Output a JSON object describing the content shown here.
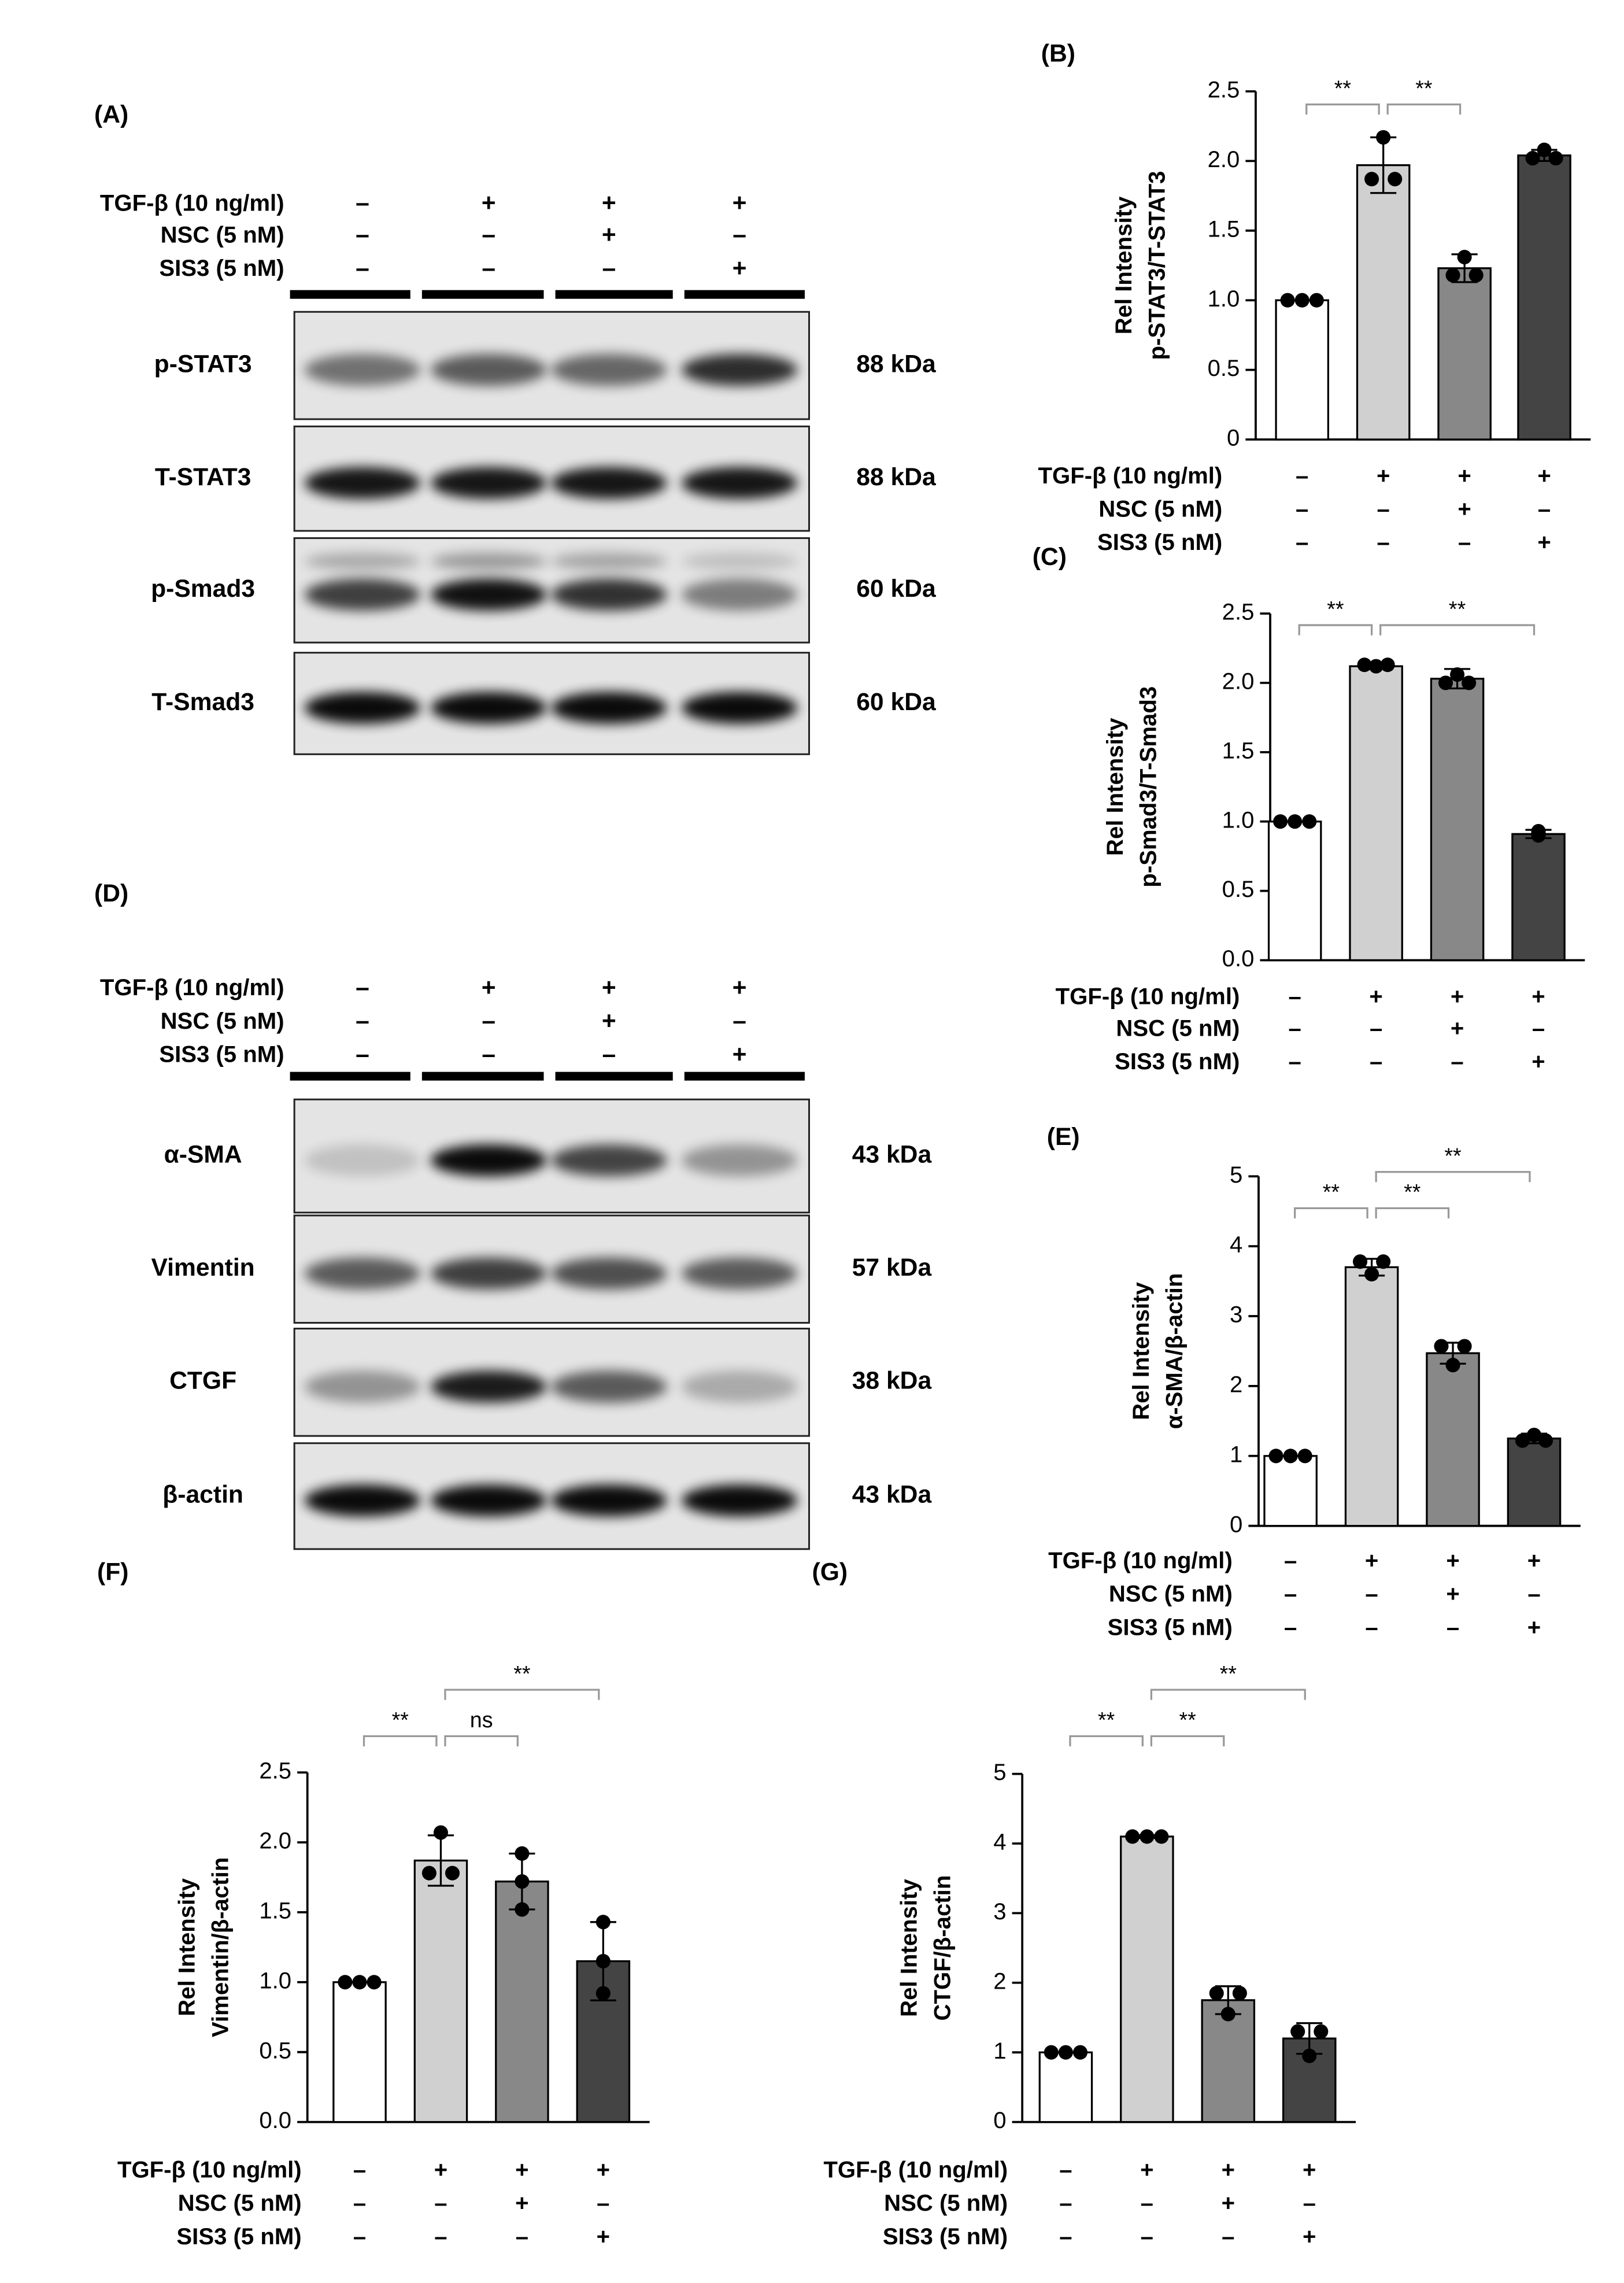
{
  "blots": [
    {
      "panel": "(A)",
      "treatments": [
        {
          "label": "TGF-β (10 ng/ml)",
          "signs": [
            "–",
            "+",
            "+",
            "+"
          ]
        },
        {
          "label": "NSC (5 nM)",
          "signs": [
            "–",
            "–",
            "+",
            "–"
          ]
        },
        {
          "label": "SIS3 (5 nM)",
          "signs": [
            "–",
            "–",
            "–",
            "+"
          ]
        }
      ],
      "bands": [
        {
          "name": "p-STAT3",
          "size": "88 kDa"
        },
        {
          "name": "T-STAT3",
          "size": "88 kDa"
        },
        {
          "name": "p-Smad3",
          "size": "60 kDa"
        },
        {
          "name": "T-Smad3",
          "size": "60 kDa"
        }
      ]
    },
    {
      "panel": "(D)",
      "treatments": [
        {
          "label": "TGF-β (10 ng/ml)",
          "signs": [
            "–",
            "+",
            "+",
            "+"
          ]
        },
        {
          "label": "NSC (5 nM)",
          "signs": [
            "–",
            "–",
            "+",
            "–"
          ]
        },
        {
          "label": "SIS3 (5 nM)",
          "signs": [
            "–",
            "–",
            "–",
            "+"
          ]
        }
      ],
      "bands": [
        {
          "name": "α-SMA",
          "size": "43 kDa"
        },
        {
          "name": "Vimentin",
          "size": "57 kDa"
        },
        {
          "name": "CTGF",
          "size": "38 kDa"
        },
        {
          "name": "β-actin",
          "size": "43 kDa"
        }
      ]
    }
  ],
  "chart_data": [
    {
      "type": "bar",
      "panel": "(B)",
      "ylabel": [
        "Rel Intensity",
        "p-STAT3/T-STAT3"
      ],
      "conditions": [
        {
          "label": "TGF-β (10 ng/ml)",
          "signs": [
            "–",
            "+",
            "+",
            "+"
          ]
        },
        {
          "label": "NSC (5 nM)",
          "signs": [
            "–",
            "–",
            "+",
            "–"
          ]
        },
        {
          "label": "SIS3 (5 nM)",
          "signs": [
            "–",
            "–",
            "–",
            "+"
          ]
        }
      ],
      "values": [
        1.0,
        1.97,
        1.23,
        2.04
      ],
      "errors": [
        0,
        0.2,
        0.1,
        0.04
      ],
      "points": [
        [
          1.0,
          1.0,
          1.0
        ],
        [
          2.17,
          1.87,
          1.87
        ],
        [
          1.31,
          1.18,
          1.18
        ],
        [
          2.08,
          2.02,
          2.02
        ]
      ],
      "colors": [
        "#ffffff",
        "#d0d0d0",
        "#888888",
        "#444444"
      ],
      "ylim": [
        0,
        2.5
      ],
      "yticks": [
        0,
        {
          "value": 0.5,
          "label": "0.5"
        },
        {
          "value": 1,
          "label": "1.0"
        },
        {
          "value": 1.5,
          "label": "1.5"
        },
        {
          "value": 2,
          "label": "2.0"
        },
        {
          "value": 2.5,
          "label": "2.5"
        }
      ],
      "comparisons": [
        {
          "label": "**",
          "between": [
            0,
            1
          ]
        },
        {
          "label": "**",
          "between": [
            1,
            2
          ]
        }
      ]
    },
    {
      "type": "bar",
      "panel": "(C)",
      "ylabel": [
        "Rel Intensity",
        "p-Smad3/T-Smad3"
      ],
      "conditions": [
        {
          "label": "TGF-β (10 ng/ml)",
          "signs": [
            "–",
            "+",
            "+",
            "+"
          ]
        },
        {
          "label": "NSC (5 nM)",
          "signs": [
            "–",
            "–",
            "+",
            "–"
          ]
        },
        {
          "label": "SIS3 (5 nM)",
          "signs": [
            "–",
            "–",
            "–",
            "+"
          ]
        }
      ],
      "values": [
        1.0,
        2.12,
        2.03,
        0.91
      ],
      "errors": [
        0,
        0.02,
        0.07,
        0.03
      ],
      "points": [
        [
          1.0,
          1.0,
          1.0
        ],
        [
          2.13,
          2.12,
          2.13
        ],
        [
          2.06,
          2.0,
          2.0
        ],
        [
          0.93,
          0.9,
          0.92
        ]
      ],
      "colors": [
        "#ffffff",
        "#d0d0d0",
        "#888888",
        "#444444"
      ],
      "ylim": [
        0,
        2.5
      ],
      "yticks": [
        {
          "value": 0,
          "label": "0.0"
        },
        {
          "value": 0.5,
          "label": "0.5"
        },
        {
          "value": 1,
          "label": "1.0"
        },
        {
          "value": 1.5,
          "label": "1.5"
        },
        {
          "value": 2,
          "label": "2.0"
        },
        {
          "value": 2.5,
          "label": "2.5"
        }
      ],
      "comparisons": [
        {
          "label": "**",
          "between": [
            0,
            1
          ]
        },
        {
          "label": "**",
          "between": [
            1,
            3
          ]
        }
      ]
    },
    {
      "type": "bar",
      "panel": "(E)",
      "ylabel": [
        "Rel Intensity",
        "α-SMA/β-actin"
      ],
      "conditions": [
        {
          "label": "TGF-β (10 ng/ml)",
          "signs": [
            "–",
            "+",
            "+",
            "+"
          ]
        },
        {
          "label": "NSC (5 nM)",
          "signs": [
            "–",
            "–",
            "+",
            "–"
          ]
        },
        {
          "label": "SIS3 (5 nM)",
          "signs": [
            "–",
            "–",
            "–",
            "+"
          ]
        }
      ],
      "values": [
        1.0,
        3.7,
        2.47,
        1.25
      ],
      "errors": [
        0,
        0.12,
        0.15,
        0.07
      ],
      "points": [
        [
          1.0,
          1.0,
          1.0
        ],
        [
          3.78,
          3.78,
          3.6
        ],
        [
          2.57,
          2.57,
          2.3
        ],
        [
          1.3,
          1.22,
          1.22
        ]
      ],
      "colors": [
        "#ffffff",
        "#d0d0d0",
        "#888888",
        "#444444"
      ],
      "ylim": [
        0,
        5
      ],
      "yticks": [
        0,
        1,
        2,
        3,
        4,
        5
      ],
      "comparisons": [
        {
          "label": "**",
          "between": [
            0,
            1
          ]
        },
        {
          "label": "**",
          "between": [
            1,
            2
          ]
        },
        {
          "label": "**",
          "between": [
            1,
            3
          ]
        }
      ]
    },
    {
      "type": "bar",
      "panel": "(F)",
      "ylabel": [
        "Rel Intensity",
        "Vimentin/β-actin"
      ],
      "conditions": [
        {
          "label": "TGF-β (10 ng/ml)",
          "signs": [
            "–",
            "+",
            "+",
            "+"
          ]
        },
        {
          "label": "NSC (5 nM)",
          "signs": [
            "–",
            "–",
            "+",
            "–"
          ]
        },
        {
          "label": "SIS3 (5 nM)",
          "signs": [
            "–",
            "–",
            "–",
            "+"
          ]
        }
      ],
      "values": [
        1.0,
        1.87,
        1.72,
        1.15
      ],
      "errors": [
        0,
        0.18,
        0.2,
        0.28
      ],
      "points": [
        [
          1.0,
          1.0,
          1.0
        ],
        [
          2.07,
          1.78,
          1.78
        ],
        [
          1.92,
          1.72,
          1.52
        ],
        [
          1.43,
          1.15,
          0.92
        ]
      ],
      "colors": [
        "#ffffff",
        "#d0d0d0",
        "#888888",
        "#444444"
      ],
      "ylim": [
        0,
        2.5
      ],
      "yticks": [
        {
          "value": 0,
          "label": "0.0"
        },
        {
          "value": 0.5,
          "label": "0.5"
        },
        {
          "value": 1,
          "label": "1.0"
        },
        {
          "value": 1.5,
          "label": "1.5"
        },
        {
          "value": 2,
          "label": "2.0"
        },
        {
          "value": 2.5,
          "label": "2.5"
        }
      ],
      "comparisons": [
        {
          "label": "**",
          "between": [
            0,
            1
          ]
        },
        {
          "label": "ns",
          "between": [
            1,
            2
          ]
        },
        {
          "label": "**",
          "between": [
            1,
            3
          ]
        }
      ]
    },
    {
      "type": "bar",
      "panel": "(G)",
      "ylabel": [
        "Rel Intensity",
        "CTGF/β-actin"
      ],
      "conditions": [
        {
          "label": "TGF-β (10 ng/ml)",
          "signs": [
            "–",
            "+",
            "+",
            "+"
          ]
        },
        {
          "label": "NSC (5 nM)",
          "signs": [
            "–",
            "–",
            "+",
            "–"
          ]
        },
        {
          "label": "SIS3 (5 nM)",
          "signs": [
            "–",
            "–",
            "–",
            "+"
          ]
        }
      ],
      "values": [
        1.0,
        4.1,
        1.75,
        1.2
      ],
      "errors": [
        0,
        0.02,
        0.2,
        0.22
      ],
      "points": [
        [
          1.0,
          1.0,
          1.0
        ],
        [
          4.1,
          4.1,
          4.1
        ],
        [
          1.85,
          1.85,
          1.55
        ],
        [
          1.3,
          1.3,
          0.95
        ]
      ],
      "colors": [
        "#ffffff",
        "#d0d0d0",
        "#888888",
        "#444444"
      ],
      "ylim": [
        0,
        5
      ],
      "yticks": [
        0,
        1,
        2,
        3,
        4,
        5
      ],
      "comparisons": [
        {
          "label": "**",
          "between": [
            0,
            1
          ]
        },
        {
          "label": "**",
          "between": [
            1,
            2
          ]
        },
        {
          "label": "**",
          "between": [
            1,
            3
          ]
        }
      ]
    }
  ]
}
